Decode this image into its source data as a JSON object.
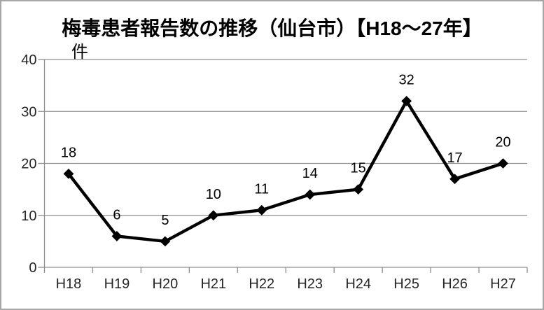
{
  "frame": {
    "background": "#ffffff",
    "border_color": "#a6a6a6"
  },
  "chart_data": {
    "type": "line",
    "title": "梅毒患者報告数の推移（仙台市）【H18～27年】",
    "categories": [
      "H18",
      "H19",
      "H20",
      "H21",
      "H22",
      "H23",
      "H24",
      "H25",
      "H26",
      "H27"
    ],
    "values": [
      18,
      6,
      5,
      10,
      11,
      14,
      15,
      32,
      17,
      20
    ],
    "xlabel": "",
    "ylabel": "件",
    "ylim": [
      0,
      40
    ],
    "yticks": [
      0,
      10,
      20,
      30,
      40
    ],
    "grid": true,
    "legend": false,
    "data_labels": true,
    "marker": "diamond",
    "series_color": "#000000",
    "gridline_color": "#8f8f8f",
    "axis_color": "#8f8f8f",
    "tick_label_color": "#262626",
    "data_label_color": "#000000"
  }
}
